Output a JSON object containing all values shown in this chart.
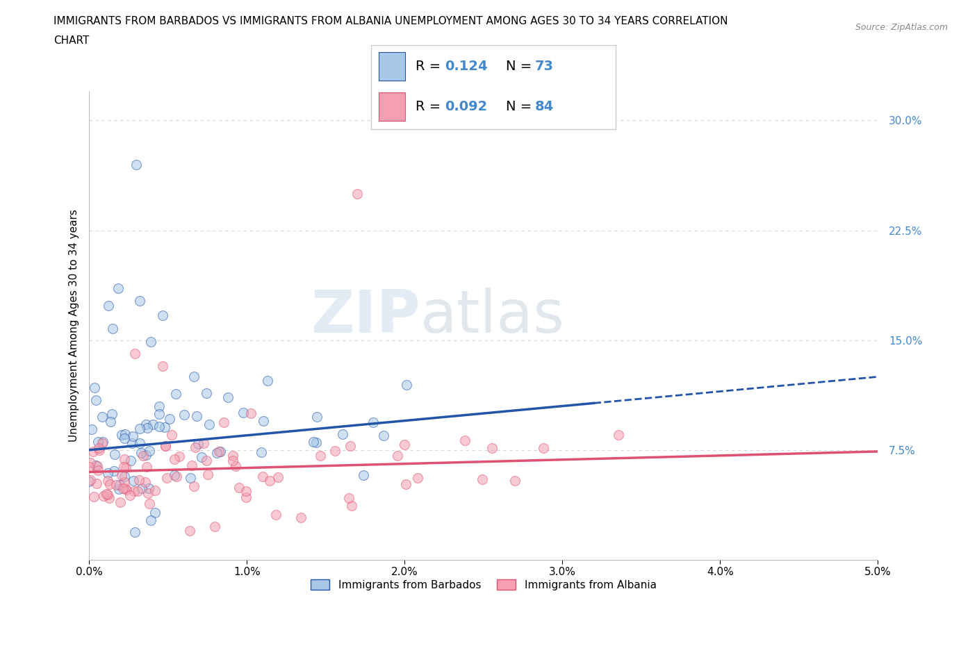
{
  "title_line1": "IMMIGRANTS FROM BARBADOS VS IMMIGRANTS FROM ALBANIA UNEMPLOYMENT AMONG AGES 30 TO 34 YEARS CORRELATION",
  "title_line2": "CHART",
  "source_text": "Source: ZipAtlas.com",
  "ylabel": "Unemployment Among Ages 30 to 34 years",
  "xlabel_barbados": "Immigrants from Barbados",
  "xlabel_albania": "Immigrants from Albania",
  "watermark_zip": "ZIP",
  "watermark_atlas": "atlas",
  "legend_r1_val": "0.124",
  "legend_n1_val": "73",
  "legend_r2_val": "0.092",
  "legend_n2_val": "84",
  "xlim": [
    0.0,
    0.05
  ],
  "ylim": [
    0.0,
    0.32
  ],
  "yticks": [
    0.0,
    0.075,
    0.15,
    0.225,
    0.3
  ],
  "ytick_labels": [
    "",
    "7.5%",
    "15.0%",
    "22.5%",
    "30.0%"
  ],
  "xticks": [
    0.0,
    0.01,
    0.02,
    0.03,
    0.04,
    0.05
  ],
  "xtick_labels": [
    "0.0%",
    "1.0%",
    "2.0%",
    "3.0%",
    "4.0%",
    "5.0%"
  ],
  "color_barbados": "#a8c8e8",
  "color_albania": "#f4a0b0",
  "color_line_barbados": "#2255aa",
  "color_line_albania": "#e05070",
  "background_color": "#ffffff",
  "grid_color": "#cccccc",
  "tick_color": "#4488cc",
  "title_fontsize": 11,
  "axis_label_fontsize": 11,
  "tick_fontsize": 11
}
